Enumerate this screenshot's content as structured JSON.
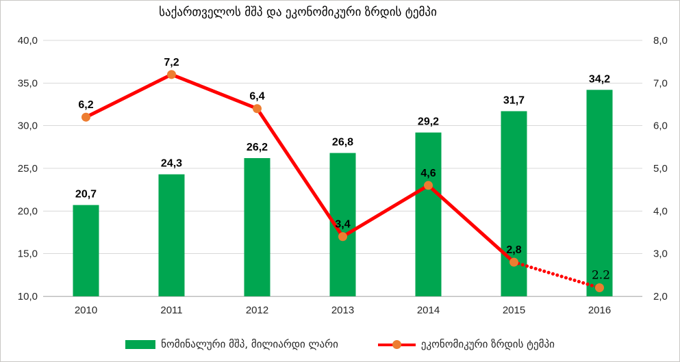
{
  "chart": {
    "title": "საქართველოს მშპ და ეკონომიკური ზრდის ტემპი",
    "legend": [
      {
        "label": "ნომინალური მშპ, მილიარდი ლარი",
        "swatch": "bar",
        "color": "#00A650"
      },
      {
        "label": "ეკონომიკური ზრდის ტემპი",
        "swatch": "line-marker",
        "line_color": "#FF0000",
        "marker_color": "#ED7D31"
      }
    ]
  },
  "chart_data": {
    "type": "combo",
    "title": "საქართველოს მშპ და ეკონომიკური ზრდის ტემპი",
    "categories": [
      "2010",
      "2011",
      "2012",
      "2013",
      "2014",
      "2015",
      "2016"
    ],
    "series": [
      {
        "name": "ნომინალური მშპ, მილიარდი ლარი",
        "type": "bar",
        "axis": "left",
        "color": "#00A650",
        "values": [
          20.7,
          24.3,
          26.2,
          26.8,
          29.2,
          31.7,
          34.2
        ],
        "labels": [
          "20,7",
          "24,3",
          "26,2",
          "26,8",
          "29,2",
          "31,7",
          "34,2"
        ]
      },
      {
        "name": "ეკონომიკური ზრდის ტემპი",
        "type": "line",
        "axis": "right",
        "color": "#FF0000",
        "marker_color": "#ED7D31",
        "values": [
          6.2,
          7.2,
          6.4,
          3.4,
          4.6,
          2.8,
          2.2
        ],
        "labels": [
          "6,2",
          "7,2",
          "6,4",
          "3,4",
          "4,6",
          "2,8",
          "2.2"
        ],
        "dotted_from_index": 5
      }
    ],
    "axes": {
      "left": {
        "min": 10,
        "max": 40,
        "step": 5,
        "ticks": [
          "40,0",
          "35,0",
          "30,0",
          "25,0",
          "20,0",
          "15,0",
          "10,0"
        ]
      },
      "right": {
        "min": 2,
        "max": 8,
        "step": 1,
        "ticks": [
          "8,0",
          "7,0",
          "6,0",
          "5,0",
          "4,0",
          "3,0",
          "2,0"
        ]
      }
    },
    "grid": true,
    "legend_position": "bottom",
    "grid_color": "#D9D9D9",
    "axis_line_color": "#BFBFBF"
  }
}
